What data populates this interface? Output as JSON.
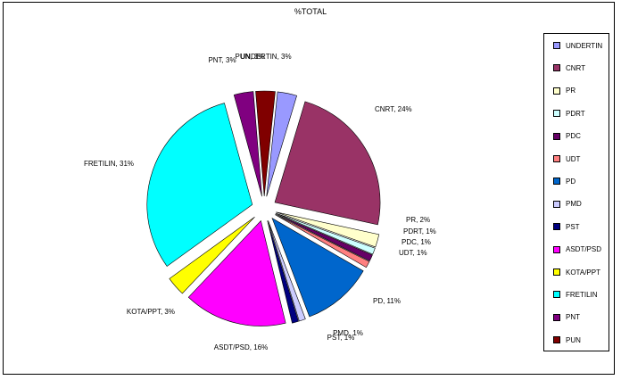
{
  "chart_data": {
    "type": "pie",
    "title": "%TOTAL",
    "legend_position": "right",
    "series": [
      {
        "name": "UNDERTIN",
        "label": "UNDERTIN, 3%",
        "value": 3,
        "color": "#9999ff"
      },
      {
        "name": "CNRT",
        "label": "CNRT, 24%",
        "value": 24,
        "color": "#993366"
      },
      {
        "name": "PR",
        "label": "PR, 2%",
        "value": 2,
        "color": "#ffffcc"
      },
      {
        "name": "PDRT",
        "label": "PDRT, 1%",
        "value": 1,
        "color": "#ccffff"
      },
      {
        "name": "PDC",
        "label": "PDC, 1%",
        "value": 1,
        "color": "#660066"
      },
      {
        "name": "UDT",
        "label": "UDT, 1%",
        "value": 1,
        "color": "#ff8080"
      },
      {
        "name": "PD",
        "label": "PD, 11%",
        "value": 11,
        "color": "#0066cc"
      },
      {
        "name": "PMD",
        "label": "PMD, 1%",
        "value": 1,
        "color": "#ccccff"
      },
      {
        "name": "PST",
        "label": "PST, 1%",
        "value": 1,
        "color": "#000080"
      },
      {
        "name": "ASDT/PSD",
        "label": "ASDT/PSD, 16%",
        "value": 16,
        "color": "#ff00ff"
      },
      {
        "name": "KOTA/PPT",
        "label": "KOTA/PPT, 3%",
        "value": 3,
        "color": "#ffff00"
      },
      {
        "name": "FRETILIN",
        "label": "FRETILIN, 31%",
        "value": 31,
        "color": "#00ffff"
      },
      {
        "name": "PNT",
        "label": "PNT, 3%",
        "value": 3,
        "color": "#800080"
      },
      {
        "name": "PUN",
        "label": "PUN, 3%",
        "value": 3,
        "color": "#800000"
      }
    ]
  }
}
